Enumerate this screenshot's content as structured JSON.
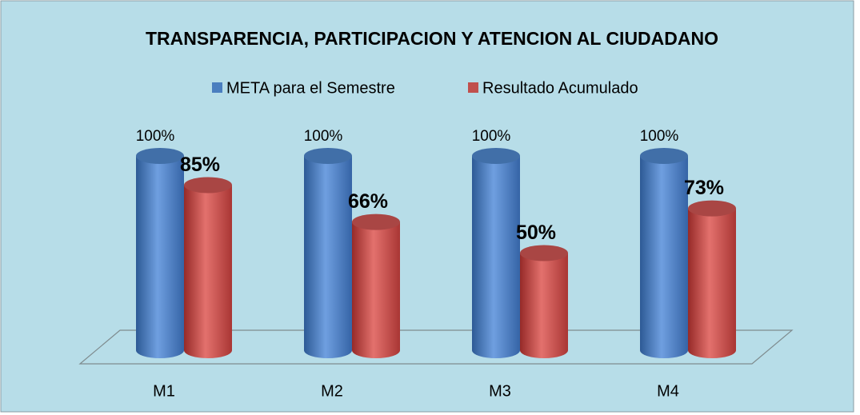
{
  "chart_data": {
    "type": "bar3d",
    "title": "TRANSPARENCIA,  PARTICIPACION Y ATENCION AL CIUDADANO",
    "categories": [
      "M1",
      "M2",
      "M3",
      "M4"
    ],
    "ylim": [
      0,
      100
    ],
    "series": [
      {
        "name": "META para el Semestre",
        "color": "#4a7ebf",
        "values": [
          100,
          100,
          100,
          100
        ],
        "value_labels": [
          "100%",
          "100%",
          "100%",
          "100%"
        ]
      },
      {
        "name": "Resultado Acumulado",
        "color": "#c0504d",
        "values": [
          85,
          66,
          50,
          73
        ],
        "value_labels": [
          "85%",
          "66%",
          "50%",
          "73%"
        ]
      }
    ]
  }
}
